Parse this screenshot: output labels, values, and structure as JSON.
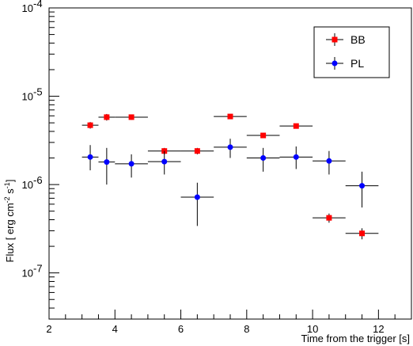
{
  "chart_data": {
    "type": "scatter",
    "title": "",
    "xlabel": "Time from the trigger [s]",
    "ylabel_parts": {
      "prefix": "Flux [ erg cm",
      "exp1": "-2",
      "mid": " s",
      "exp2": "-1",
      "suffix": "]"
    },
    "xlim": [
      2,
      13
    ],
    "ylim": [
      3e-08,
      0.0001
    ],
    "yscale": "log",
    "x_ticks": [
      "2",
      "4",
      "6",
      "8",
      "10",
      "12"
    ],
    "y_tick_labels": [
      {
        "value": 1e-07,
        "base": "10",
        "exp": "-7"
      },
      {
        "value": 1e-06,
        "base": "10",
        "exp": "-6"
      },
      {
        "value": 1e-05,
        "base": "10",
        "exp": "-5"
      },
      {
        "value": 0.0001,
        "base": "10",
        "exp": "-4"
      }
    ],
    "grid": false,
    "legend_position": "top-right",
    "series": [
      {
        "name": "BB",
        "color": "#ff0000",
        "marker": "square",
        "points": [
          {
            "x": 3.25,
            "xerr": 0.25,
            "y": 4.7e-06,
            "ylo": 4.3e-06,
            "yhi": 5.1e-06
          },
          {
            "x": 3.75,
            "xerr": 0.25,
            "y": 5.8e-06,
            "ylo": 5.3e-06,
            "yhi": 6.3e-06
          },
          {
            "x": 4.5,
            "xerr": 0.5,
            "y": 5.8e-06,
            "ylo": 5.4e-06,
            "yhi": 6.2e-06
          },
          {
            "x": 5.5,
            "xerr": 0.5,
            "y": 2.4e-06,
            "ylo": 2.2e-06,
            "yhi": 2.6e-06
          },
          {
            "x": 6.5,
            "xerr": 0.5,
            "y": 2.4e-06,
            "ylo": 2.2e-06,
            "yhi": 2.6e-06
          },
          {
            "x": 7.5,
            "xerr": 0.5,
            "y": 5.9e-06,
            "ylo": 5.6e-06,
            "yhi": 6.2e-06
          },
          {
            "x": 8.5,
            "xerr": 0.5,
            "y": 3.6e-06,
            "ylo": 3.4e-06,
            "yhi": 3.8e-06
          },
          {
            "x": 9.5,
            "xerr": 0.5,
            "y": 4.6e-06,
            "ylo": 4.4e-06,
            "yhi": 4.8e-06
          },
          {
            "x": 10.5,
            "xerr": 0.5,
            "y": 4.2e-07,
            "ylo": 3.7e-07,
            "yhi": 4.7e-07
          },
          {
            "x": 11.5,
            "xerr": 0.5,
            "y": 2.8e-07,
            "ylo": 2.4e-07,
            "yhi": 3.2e-07
          }
        ]
      },
      {
        "name": "PL",
        "color": "#0000ff",
        "marker": "circle",
        "points": [
          {
            "x": 3.25,
            "xerr": 0.25,
            "y": 2.05e-06,
            "ylo": 1.45e-06,
            "yhi": 2.8e-06
          },
          {
            "x": 3.75,
            "xerr": 0.25,
            "y": 1.8e-06,
            "ylo": 1e-06,
            "yhi": 2.6e-06
          },
          {
            "x": 4.5,
            "xerr": 0.5,
            "y": 1.72e-06,
            "ylo": 1.2e-06,
            "yhi": 2.2e-06
          },
          {
            "x": 5.5,
            "xerr": 0.5,
            "y": 1.82e-06,
            "ylo": 1.3e-06,
            "yhi": 2.4e-06
          },
          {
            "x": 6.5,
            "xerr": 0.5,
            "y": 7.2e-07,
            "ylo": 3.4e-07,
            "yhi": 1.05e-06
          },
          {
            "x": 7.5,
            "xerr": 0.5,
            "y": 2.65e-06,
            "ylo": 2e-06,
            "yhi": 3.3e-06
          },
          {
            "x": 8.5,
            "xerr": 0.5,
            "y": 2e-06,
            "ylo": 1.4e-06,
            "yhi": 2.6e-06
          },
          {
            "x": 9.5,
            "xerr": 0.5,
            "y": 2.05e-06,
            "ylo": 1.5e-06,
            "yhi": 2.7e-06
          },
          {
            "x": 10.5,
            "xerr": 0.5,
            "y": 1.85e-06,
            "ylo": 1.3e-06,
            "yhi": 2.4e-06
          },
          {
            "x": 11.5,
            "xerr": 0.5,
            "y": 9.7e-07,
            "ylo": 5.5e-07,
            "yhi": 1.4e-06
          }
        ]
      }
    ]
  }
}
